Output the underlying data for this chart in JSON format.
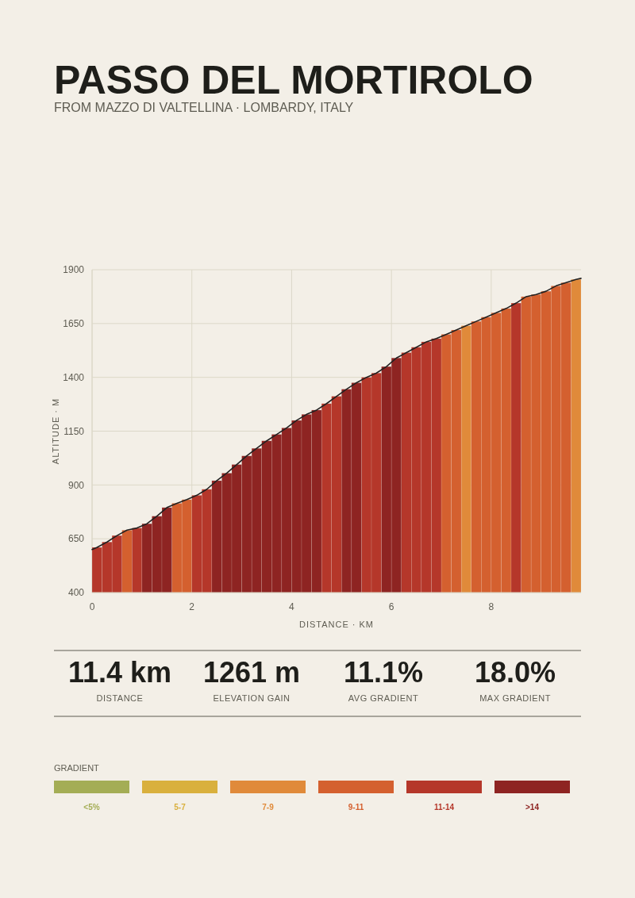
{
  "chart_data": {
    "type": "bar",
    "title": "PASSO DEL MORTIROLO",
    "subtitle": "FROM MAZZO DI VALTELLINA · LOMBARDY, ITALY",
    "xlabel": "DISTANCE · KM",
    "ylabel": "ALTITUDE · M",
    "xlim": [
      0,
      9.8
    ],
    "xticks": [
      0,
      2,
      4,
      6,
      8
    ],
    "ylim": [
      400,
      1900
    ],
    "yticks": [
      400,
      650,
      900,
      1150,
      1400,
      1650,
      1900
    ],
    "grid": true,
    "legend": "bottom",
    "legend_title": "GRADIENT",
    "annotations": [
      "11.4 km",
      "DISTANCE",
      "1261 m",
      "ELEVATION GAIN",
      "11.1%",
      "AVG GRADIENT",
      "18.0%",
      "MAX GRADIENT"
    ],
    "series": [
      {
        "name": "<5%",
        "color": "#a4ad55"
      },
      {
        "name": "5-7",
        "color": "#d9b03d"
      },
      {
        "name": "7-9",
        "color": "#e08a3a",
        "x": [
          7.5,
          9.7
        ],
        "values": [
          1640,
          1855
        ]
      },
      {
        "name": "9-11",
        "color": "#d4602f",
        "x": [
          0.7,
          1.7,
          1.9,
          7.1,
          7.3,
          7.7,
          7.9,
          8.1,
          8.3,
          8.7,
          8.9,
          9.1,
          9.3,
          9.5
        ],
        "values": [
          690,
          815,
          832,
          1600,
          1620,
          1660,
          1680,
          1700,
          1720,
          1775,
          1785,
          1800,
          1825,
          1840
        ]
      },
      {
        "name": "11-14",
        "color": "#b5372a",
        "x": [
          0.1,
          0.3,
          0.5,
          0.9,
          2.1,
          2.3,
          4.7,
          4.9,
          5.5,
          5.7,
          6.3,
          6.5,
          6.7,
          6.9,
          8.5
        ],
        "values": [
          610,
          635,
          665,
          700,
          852,
          880,
          1278,
          1312,
          1400,
          1420,
          1515,
          1540,
          1565,
          1580,
          1745
        ]
      },
      {
        "name": ">14",
        "color": "#8e2422",
        "x": [
          1.1,
          1.3,
          1.5,
          2.5,
          2.7,
          2.9,
          3.1,
          3.3,
          3.5,
          3.7,
          3.9,
          4.1,
          4.3,
          4.5,
          5.1,
          5.3,
          5.9,
          6.1
        ],
        "values": [
          720,
          755,
          795,
          920,
          955,
          995,
          1035,
          1070,
          1105,
          1135,
          1165,
          1200,
          1228,
          1248,
          1345,
          1375,
          1450,
          1490
        ]
      },
      {
        "type": "line",
        "color": "#222222",
        "x": [
          0,
          0.1,
          0.3,
          0.5,
          0.7,
          0.9,
          1.1,
          1.3,
          1.5,
          1.7,
          1.9,
          2.1,
          2.3,
          2.5,
          2.7,
          2.9,
          3.1,
          3.3,
          3.5,
          3.7,
          3.9,
          4.1,
          4.3,
          4.5,
          4.7,
          4.9,
          5.1,
          5.3,
          5.5,
          5.7,
          5.9,
          6.1,
          6.3,
          6.5,
          6.7,
          6.9,
          7.1,
          7.3,
          7.5,
          7.7,
          7.9,
          8.1,
          8.3,
          8.5,
          8.7,
          8.9,
          9.1,
          9.3,
          9.5,
          9.7,
          9.8
        ],
        "values": [
          600,
          610,
          635,
          665,
          690,
          700,
          720,
          755,
          795,
          815,
          832,
          852,
          880,
          920,
          955,
          995,
          1035,
          1070,
          1105,
          1135,
          1165,
          1200,
          1228,
          1248,
          1278,
          1312,
          1345,
          1375,
          1400,
          1420,
          1450,
          1490,
          1515,
          1540,
          1565,
          1580,
          1600,
          1620,
          1640,
          1660,
          1680,
          1700,
          1720,
          1745,
          1775,
          1785,
          1800,
          1825,
          1840,
          1855,
          1860
        ]
      }
    ]
  }
}
